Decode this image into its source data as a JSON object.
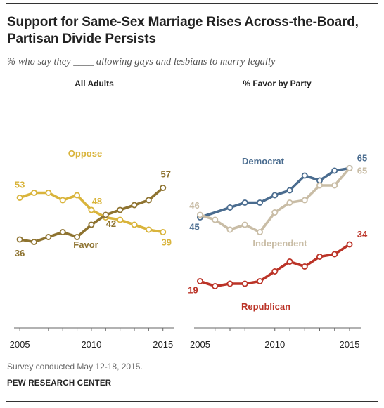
{
  "header": {
    "title": "Support for Same-Sex Marriage Rises Across-the-Board, Partisan Divide Persists",
    "subtitle": "% who say they ____ allowing gays and lesbians to marry legally"
  },
  "footer": {
    "note": "Survey conducted May 12-18, 2015.",
    "source": "PEW RESEARCH CENTER"
  },
  "chart_data": [
    {
      "type": "line",
      "title": "All Adults",
      "x": [
        2005,
        2006,
        2007,
        2008,
        2009,
        2010,
        2011,
        2012,
        2013,
        2014,
        2015
      ],
      "xticks": [
        "2005",
        "2010",
        "2015"
      ],
      "xlim": [
        2004.6,
        2015.8
      ],
      "ylim": [
        0,
        80
      ],
      "grid": false,
      "series": [
        {
          "name": "Oppose",
          "color": "#d9b43b",
          "x": [
            2005,
            2006,
            2007,
            2008,
            2009,
            2010,
            2011,
            2012,
            2013,
            2014,
            2015
          ],
          "values": [
            53,
            55,
            55,
            52,
            54,
            48,
            45,
            44,
            42,
            40,
            39
          ],
          "labels": [
            {
              "index": 0,
              "text": "53"
            },
            {
              "index": 5,
              "text": "48"
            },
            {
              "index": 10,
              "text": "39"
            }
          ]
        },
        {
          "name": "Favor",
          "color": "#8e7330",
          "x": [
            2005,
            2006,
            2007,
            2008,
            2009,
            2010,
            2011,
            2012,
            2013,
            2014,
            2015
          ],
          "values": [
            36,
            35,
            37,
            39,
            37,
            42,
            46,
            48,
            50,
            52,
            57
          ],
          "labels": [
            {
              "index": 0,
              "text": "36"
            },
            {
              "index": 5,
              "text": "42"
            },
            {
              "index": 10,
              "text": "57"
            }
          ]
        }
      ]
    },
    {
      "type": "line",
      "title": "% Favor by Party",
      "x": [
        2005,
        2006,
        2007,
        2008,
        2009,
        2010,
        2011,
        2012,
        2013,
        2014,
        2015
      ],
      "xticks": [
        "2005",
        "2010",
        "2015"
      ],
      "xlim": [
        2004.6,
        2015.8
      ],
      "ylim": [
        0,
        80
      ],
      "grid": false,
      "series": [
        {
          "name": "Democrat",
          "color": "#4a6c8f",
          "x": [
            2005,
            2007,
            2008,
            2009,
            2010,
            2011,
            2012,
            2013,
            2014,
            2015
          ],
          "values": [
            45,
            49,
            51,
            51,
            54,
            56,
            62,
            60,
            64,
            65
          ],
          "labels": [
            {
              "index": 0,
              "text": "45"
            },
            {
              "index": 9,
              "text": "65"
            }
          ]
        },
        {
          "name": "Independent",
          "color": "#c9bda6",
          "x": [
            2005,
            2006,
            2007,
            2008,
            2009,
            2010,
            2011,
            2012,
            2013,
            2014,
            2015
          ],
          "values": [
            46,
            44,
            40,
            42,
            39,
            47,
            51,
            52,
            58,
            58,
            65
          ],
          "labels": [
            {
              "index": 0,
              "text": "46"
            },
            {
              "index": 10,
              "text": "65"
            }
          ]
        },
        {
          "name": "Republican",
          "color": "#bb3327",
          "x": [
            2005,
            2006,
            2007,
            2008,
            2009,
            2010,
            2011,
            2012,
            2013,
            2014,
            2015
          ],
          "values": [
            19,
            17,
            18,
            18,
            19,
            23,
            27,
            25,
            29,
            30,
            34
          ],
          "labels": [
            {
              "index": 0,
              "text": "19"
            },
            {
              "index": 10,
              "text": "34"
            }
          ]
        }
      ]
    }
  ]
}
